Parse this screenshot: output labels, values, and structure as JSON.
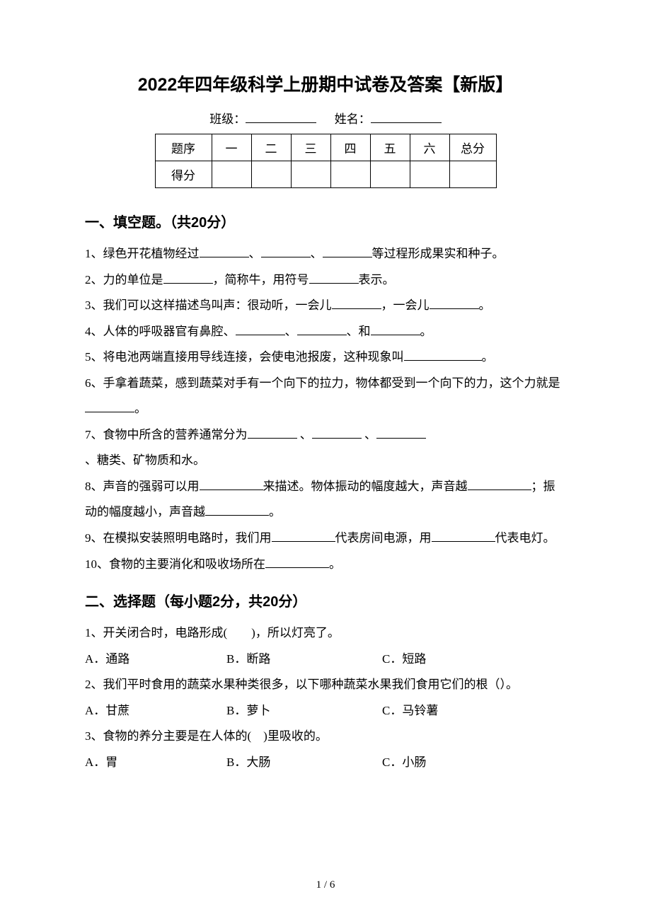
{
  "title": "2022年四年级科学上册期中试卷及答案【新版】",
  "header": {
    "class_label": "班级：",
    "name_label": "姓名："
  },
  "score_table": {
    "row1_label": "题序",
    "cols": [
      "一",
      "二",
      "三",
      "四",
      "五",
      "六",
      "总分"
    ],
    "row2_label": "得分"
  },
  "section1_heading": "一、填空题。（共20分）",
  "section1": {
    "q1a": "1、绿色开花植物经过",
    "q1b": "、",
    "q1c": "、",
    "q1d": "等过程形成果实和种子。",
    "q2a": "2、力的单位是",
    "q2b": "，简称牛，用符号",
    "q2c": "表示。",
    "q3a": "3、我们可以这样描述鸟叫声：很动听，一会儿",
    "q3b": "，一会儿",
    "q3c": "。",
    "q4a": "4、人体的呼吸器官有鼻腔、",
    "q4b": "、",
    "q4c": "、和",
    "q4d": "。",
    "q5a": "5、将电池两端直接用导线连接，会使电池报废，这种现象叫",
    "q5b": "。",
    "q6": "6、手拿着蔬菜，感到蔬菜对手有一个向下的拉力，物体都受到一个向下的力，这个力就是",
    "q6b": "。",
    "q7a": "7、食物中所含的营养通常分为",
    "q7b": " 、",
    "q7c": " 、",
    "q7d": "、糖类、矿物质和水。",
    "q8a": "8、声音的强弱可以用",
    "q8b": "来描述。物体振动的幅度越大，声音越",
    "q8c": "；振动的幅度越小，声音越",
    "q8d": "。",
    "q9a": "9、在模拟安装照明电路时，我们用",
    "q9b": "代表房间电源，用",
    "q9c": "代表电灯。",
    "q10a": "10、食物的主要消化和吸收场所在",
    "q10b": "。"
  },
  "section2_heading": "二、选择题（每小题2分，共20分）",
  "section2": {
    "q1": "1、开关闭合时，电路形成(　　)，所以灯亮了。",
    "q1_a": "A．通路",
    "q1_b": "B．断路",
    "q1_c": "C．短路",
    "q2": "2、我们平时食用的蔬菜水果种类很多，以下哪种蔬菜水果我们食用它们的根（）。",
    "q2_a": "A．甘蔗",
    "q2_b": "B．萝卜",
    "q2_c": "C．马铃薯",
    "q3": "3、食物的养分主要是在人体的(　)里吸收的。",
    "q3_a": "A．胃",
    "q3_b": "B．大肠",
    "q3_c": "C．小肠"
  },
  "page_number": "1 / 6"
}
